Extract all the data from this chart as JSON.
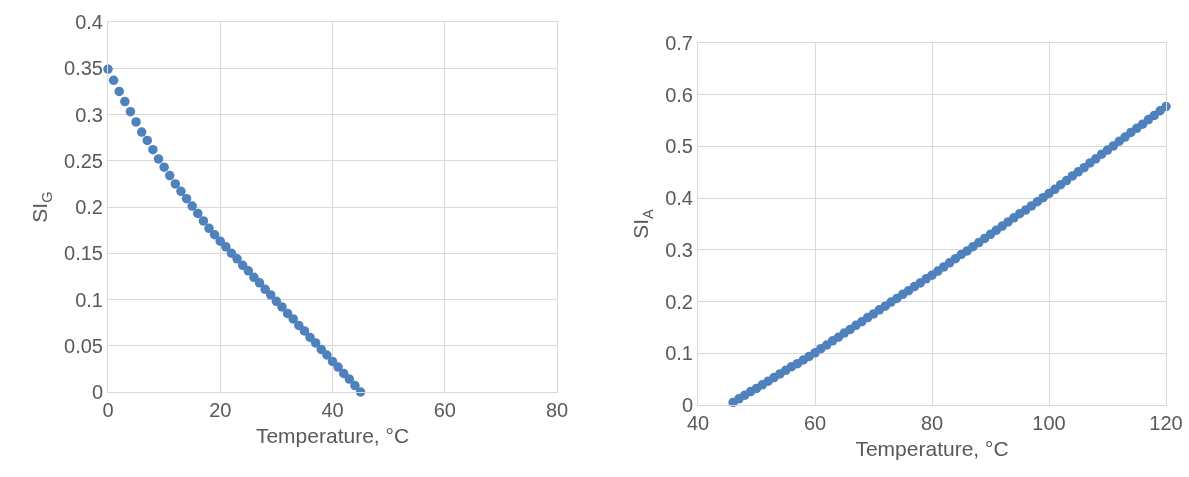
{
  "chart_data": [
    {
      "type": "scatter",
      "xlabel": "Temperature, °C",
      "ylabel": "SI$_{G}$",
      "marker": "circle",
      "grid": true,
      "xlim": [
        0,
        80
      ],
      "xticks": [
        0,
        20,
        40,
        60,
        80
      ],
      "ylim": [
        0,
        0.4
      ],
      "yticks": [
        0,
        0.05,
        0.1,
        0.15,
        0.2,
        0.25,
        0.3,
        0.35,
        0.4
      ],
      "x": [
        0,
        1,
        2,
        3,
        4,
        5,
        6,
        7,
        8,
        9,
        10,
        11,
        12,
        13,
        14,
        15,
        16,
        17,
        18,
        19,
        20,
        21,
        22,
        23,
        24,
        25,
        26,
        27,
        28,
        29,
        30,
        31,
        32,
        33,
        34,
        35,
        36,
        37,
        38,
        39,
        40,
        41,
        42,
        43,
        44,
        45
      ],
      "series": [
        {
          "color": "#4f81bd",
          "values": [
            0.349,
            0.337,
            0.325,
            0.314,
            0.303,
            0.292,
            0.281,
            0.272,
            0.262,
            0.252,
            0.243,
            0.234,
            0.225,
            0.217,
            0.209,
            0.201,
            0.193,
            0.185,
            0.177,
            0.17,
            0.163,
            0.157,
            0.15,
            0.144,
            0.137,
            0.131,
            0.124,
            0.118,
            0.111,
            0.105,
            0.098,
            0.092,
            0.085,
            0.079,
            0.072,
            0.066,
            0.059,
            0.053,
            0.046,
            0.04,
            0.033,
            0.027,
            0.02,
            0.014,
            0.007,
            0
          ]
        }
      ]
    },
    {
      "type": "scatter",
      "xlabel": "Temperature, °C",
      "ylabel": "SI$_{A}$",
      "marker": "circle",
      "grid": true,
      "xlim": [
        40,
        120
      ],
      "xticks": [
        40,
        60,
        80,
        100,
        120
      ],
      "ylim": [
        0,
        0.7
      ],
      "yticks": [
        0,
        0.1,
        0.2,
        0.3,
        0.4,
        0.5,
        0.6,
        0.7
      ],
      "x": [
        46,
        47,
        48,
        49,
        50,
        51,
        52,
        53,
        54,
        55,
        56,
        57,
        58,
        59,
        60,
        61,
        62,
        63,
        64,
        65,
        66,
        67,
        68,
        69,
        70,
        71,
        72,
        73,
        74,
        75,
        76,
        77,
        78,
        79,
        80,
        81,
        82,
        83,
        84,
        85,
        86,
        87,
        88,
        89,
        90,
        91,
        92,
        93,
        94,
        95,
        96,
        97,
        98,
        99,
        100,
        101,
        102,
        103,
        104,
        105,
        106,
        107,
        108,
        109,
        110,
        111,
        112,
        113,
        114,
        115,
        116,
        117,
        118,
        119,
        120
      ],
      "series": [
        {
          "color": "#4f81bd",
          "values": [
            0.005,
            0.012,
            0.019,
            0.026,
            0.032,
            0.039,
            0.046,
            0.053,
            0.06,
            0.067,
            0.074,
            0.08,
            0.087,
            0.094,
            0.101,
            0.109,
            0.116,
            0.124,
            0.131,
            0.139,
            0.146,
            0.154,
            0.161,
            0.169,
            0.176,
            0.184,
            0.191,
            0.199,
            0.206,
            0.214,
            0.221,
            0.229,
            0.236,
            0.244,
            0.251,
            0.259,
            0.267,
            0.275,
            0.283,
            0.291,
            0.298,
            0.306,
            0.314,
            0.322,
            0.33,
            0.338,
            0.346,
            0.354,
            0.362,
            0.37,
            0.377,
            0.385,
            0.393,
            0.401,
            0.409,
            0.417,
            0.426,
            0.434,
            0.443,
            0.451,
            0.459,
            0.468,
            0.476,
            0.485,
            0.493,
            0.501,
            0.51,
            0.518,
            0.527,
            0.535,
            0.543,
            0.552,
            0.56,
            0.569,
            0.577
          ]
        }
      ]
    }
  ]
}
